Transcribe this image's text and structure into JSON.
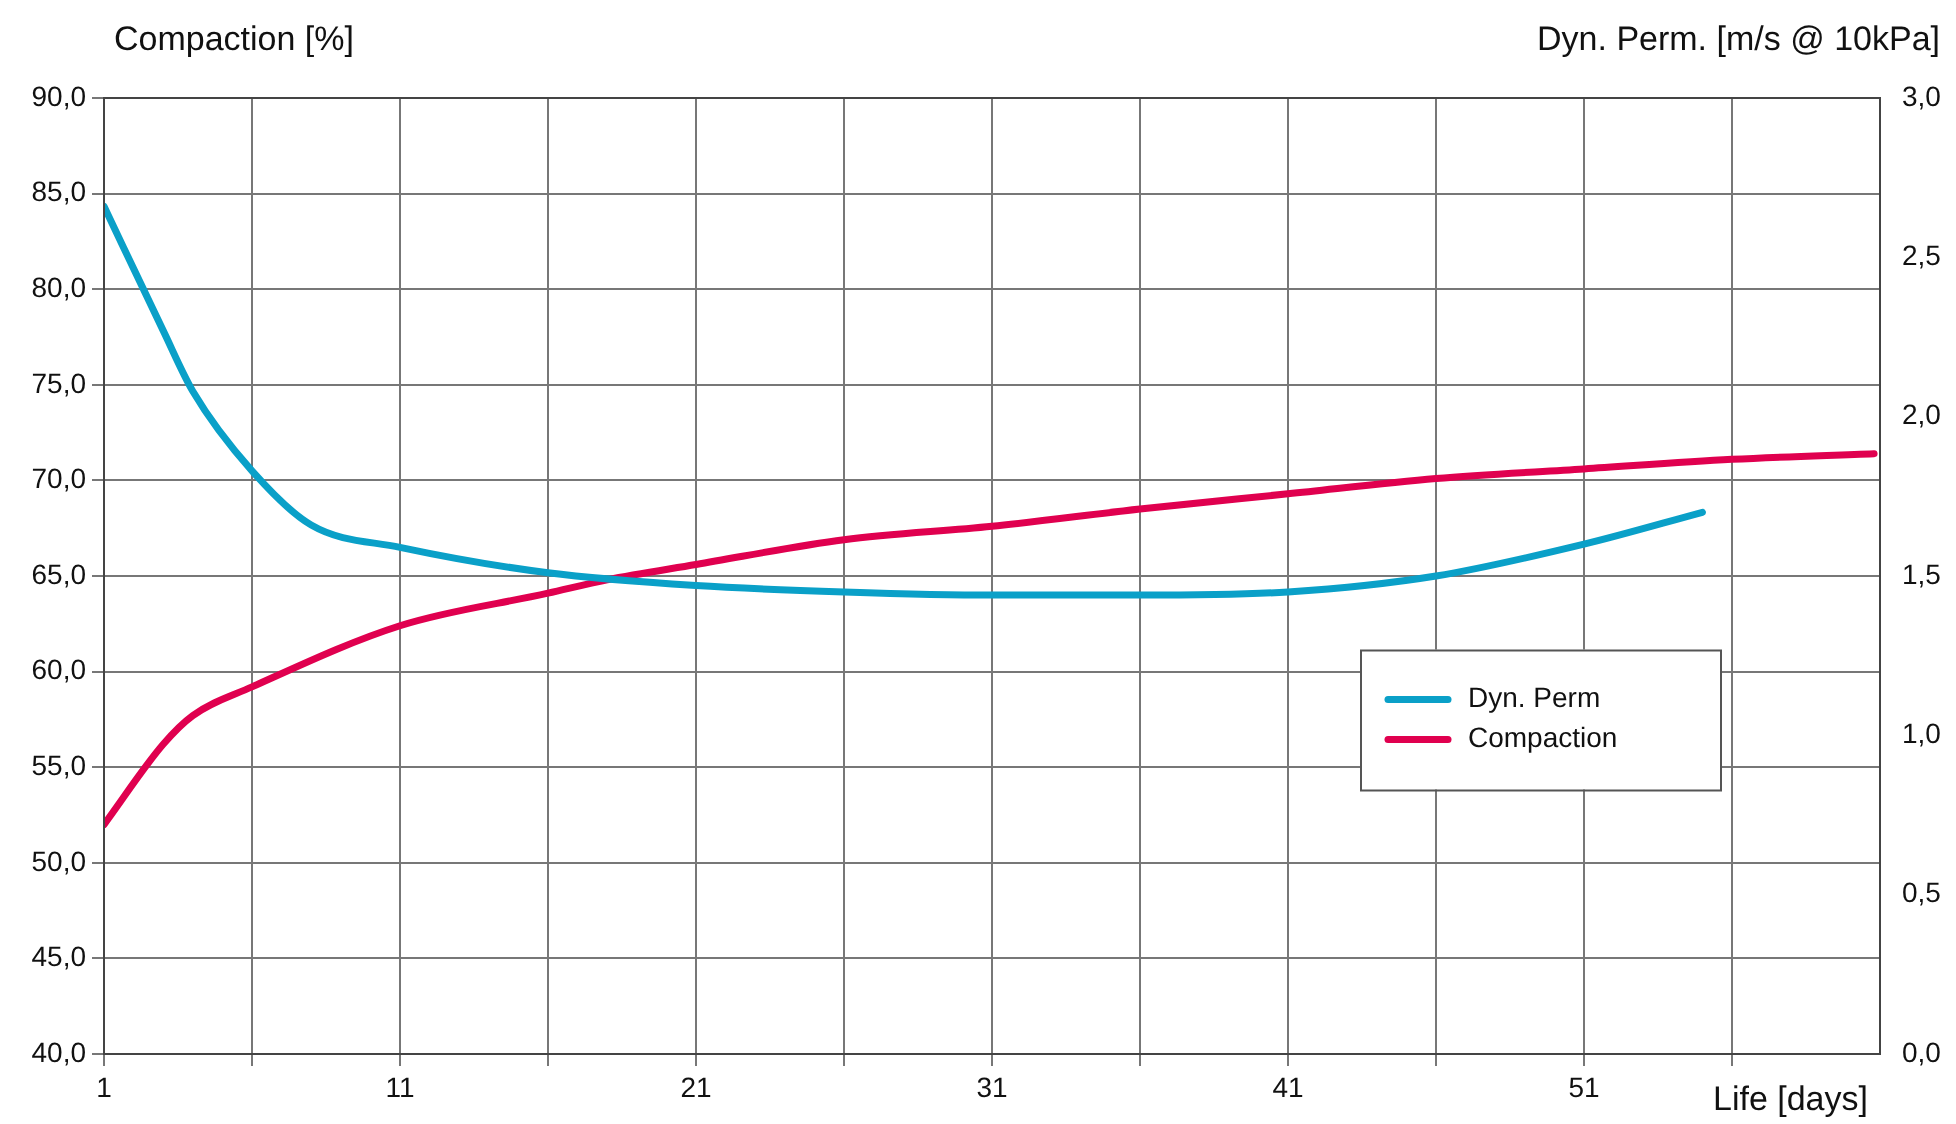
{
  "chart_data": {
    "type": "line",
    "xlabel": "Life [days]",
    "ylabel": "Compaction [%]",
    "y2label": "Dyn. Perm. [m/s @ 10kPa]",
    "xlim": [
      1,
      61
    ],
    "xticks": [
      1,
      {
        "value": 6,
        "label": null
      },
      11,
      {
        "value": 16,
        "label": null
      },
      21,
      {
        "value": 26,
        "label": null
      },
      31,
      {
        "value": 36,
        "label": null
      },
      41,
      {
        "value": 46,
        "label": null
      },
      51,
      {
        "value": 56,
        "label": null
      }
    ],
    "ylim": [
      40,
      90
    ],
    "yticks": [
      {
        "value": 40,
        "label": "40,0"
      },
      {
        "value": 45,
        "label": "45,0"
      },
      {
        "value": 50,
        "label": "50,0"
      },
      {
        "value": 55,
        "label": "55,0"
      },
      {
        "value": 60,
        "label": "60,0"
      },
      {
        "value": 65,
        "label": "65,0"
      },
      {
        "value": 70,
        "label": "70,0"
      },
      {
        "value": 75,
        "label": "75,0"
      },
      {
        "value": 80,
        "label": "80,0"
      },
      {
        "value": 85,
        "label": "85,0"
      },
      {
        "value": 90,
        "label": "90,0"
      }
    ],
    "y2lim": [
      0,
      3
    ],
    "y2ticks": [
      {
        "value": 0,
        "label": "0,0"
      },
      {
        "value": 0.5,
        "label": "0,5"
      },
      {
        "value": 1,
        "label": "1,0"
      },
      {
        "value": 1.5,
        "label": "1,5"
      },
      {
        "value": 2,
        "label": "2,0"
      },
      {
        "value": 2.5,
        "label": "2,5"
      },
      {
        "value": 3,
        "label": "3,0"
      }
    ],
    "grid": true,
    "legend": "right",
    "marker": "none",
    "line_style": "solid",
    "series": [
      {
        "name": "Dyn. Perm",
        "color": "#0aa0c8",
        "axis": "y2",
        "x": [
          1,
          3,
          4,
          6,
          8,
          11,
          16,
          21,
          26,
          31,
          36,
          41,
          46,
          51,
          55
        ],
        "values": [
          2.66,
          2.27,
          2.08,
          1.83,
          1.66,
          1.59,
          1.51,
          1.47,
          1.45,
          1.44,
          1.44,
          1.45,
          1.5,
          1.6,
          1.7
        ]
      },
      {
        "name": "Compaction",
        "color": "#e0004f",
        "x": [
          1,
          3,
          4,
          6,
          11,
          16,
          18,
          21,
          26,
          31,
          36,
          41,
          46,
          51,
          56,
          60.8
        ],
        "values": [
          52,
          56.2,
          57.7,
          59.2,
          62.4,
          64.1,
          64.8,
          65.6,
          66.9,
          67.6,
          68.5,
          69.3,
          70.1,
          70.6,
          71.1,
          71.4
        ]
      }
    ]
  }
}
